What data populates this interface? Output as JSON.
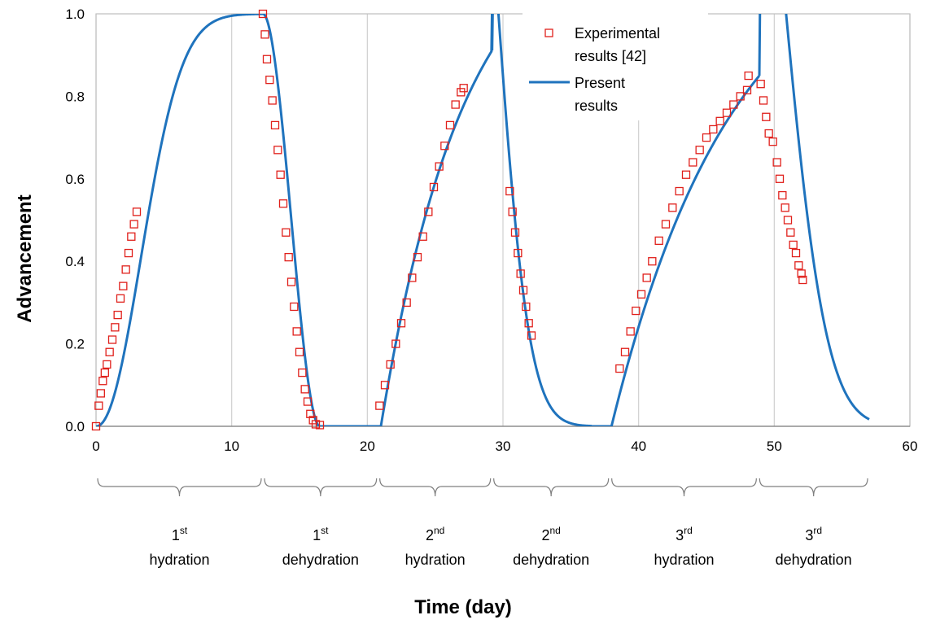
{
  "chart_data": {
    "type": "scatter",
    "xlabel": "Time (day)",
    "ylabel": "Advancement",
    "xlim": [
      0,
      60
    ],
    "ylim": [
      0,
      1.0
    ],
    "xticks": [
      "0",
      "10",
      "20",
      "30",
      "40",
      "50",
      "60"
    ],
    "yticks": [
      "0.0",
      "0.2",
      "0.4",
      "0.6",
      "0.8",
      "1.0"
    ],
    "grid": "vertical",
    "legend_position": "top-center",
    "series": [
      {
        "name": "Experimental results [42]",
        "marker": "open-square",
        "color": "#e0201b",
        "points": [
          [
            0.0,
            0.0
          ],
          [
            0.2,
            0.05
          ],
          [
            0.35,
            0.08
          ],
          [
            0.5,
            0.11
          ],
          [
            0.65,
            0.13
          ],
          [
            0.8,
            0.15
          ],
          [
            1.0,
            0.18
          ],
          [
            1.2,
            0.21
          ],
          [
            1.4,
            0.24
          ],
          [
            1.6,
            0.27
          ],
          [
            1.8,
            0.31
          ],
          [
            2.0,
            0.34
          ],
          [
            2.2,
            0.38
          ],
          [
            2.4,
            0.42
          ],
          [
            2.6,
            0.46
          ],
          [
            2.8,
            0.49
          ],
          [
            3.0,
            0.52
          ],
          [
            12.3,
            1.0
          ],
          [
            12.45,
            0.95
          ],
          [
            12.6,
            0.89
          ],
          [
            12.8,
            0.84
          ],
          [
            13.0,
            0.79
          ],
          [
            13.2,
            0.73
          ],
          [
            13.4,
            0.67
          ],
          [
            13.6,
            0.61
          ],
          [
            13.8,
            0.54
          ],
          [
            14.0,
            0.47
          ],
          [
            14.2,
            0.41
          ],
          [
            14.4,
            0.35
          ],
          [
            14.6,
            0.29
          ],
          [
            14.8,
            0.23
          ],
          [
            15.0,
            0.18
          ],
          [
            15.2,
            0.13
          ],
          [
            15.4,
            0.09
          ],
          [
            15.6,
            0.06
          ],
          [
            15.8,
            0.03
          ],
          [
            16.0,
            0.015
          ],
          [
            16.2,
            0.005
          ],
          [
            16.5,
            0.003
          ],
          [
            20.9,
            0.05
          ],
          [
            21.3,
            0.1
          ],
          [
            21.7,
            0.15
          ],
          [
            22.1,
            0.2
          ],
          [
            22.5,
            0.25
          ],
          [
            22.9,
            0.3
          ],
          [
            23.3,
            0.36
          ],
          [
            23.7,
            0.41
          ],
          [
            24.1,
            0.46
          ],
          [
            24.5,
            0.52
          ],
          [
            24.9,
            0.58
          ],
          [
            25.3,
            0.63
          ],
          [
            25.7,
            0.68
          ],
          [
            26.1,
            0.73
          ],
          [
            26.5,
            0.78
          ],
          [
            26.9,
            0.81
          ],
          [
            27.1,
            0.82
          ],
          [
            30.5,
            0.57
          ],
          [
            30.7,
            0.52
          ],
          [
            30.9,
            0.47
          ],
          [
            31.1,
            0.42
          ],
          [
            31.3,
            0.37
          ],
          [
            31.5,
            0.33
          ],
          [
            31.7,
            0.29
          ],
          [
            31.9,
            0.25
          ],
          [
            32.1,
            0.22
          ],
          [
            38.6,
            0.14
          ],
          [
            39.0,
            0.18
          ],
          [
            39.4,
            0.23
          ],
          [
            39.8,
            0.28
          ],
          [
            40.2,
            0.32
          ],
          [
            40.6,
            0.36
          ],
          [
            41.0,
            0.4
          ],
          [
            41.5,
            0.45
          ],
          [
            42.0,
            0.49
          ],
          [
            42.5,
            0.53
          ],
          [
            43.0,
            0.57
          ],
          [
            43.5,
            0.61
          ],
          [
            44.0,
            0.64
          ],
          [
            44.5,
            0.67
          ],
          [
            45.0,
            0.7
          ],
          [
            45.5,
            0.72
          ],
          [
            46.0,
            0.74
          ],
          [
            46.5,
            0.76
          ],
          [
            47.0,
            0.78
          ],
          [
            47.5,
            0.8
          ],
          [
            48.0,
            0.815
          ],
          [
            48.1,
            0.85
          ],
          [
            49.0,
            0.83
          ],
          [
            49.2,
            0.79
          ],
          [
            49.4,
            0.75
          ],
          [
            49.6,
            0.71
          ],
          [
            49.9,
            0.69
          ],
          [
            50.2,
            0.64
          ],
          [
            50.4,
            0.6
          ],
          [
            50.6,
            0.56
          ],
          [
            50.8,
            0.53
          ],
          [
            51.0,
            0.5
          ],
          [
            51.2,
            0.47
          ],
          [
            51.4,
            0.44
          ],
          [
            51.6,
            0.42
          ],
          [
            51.8,
            0.39
          ],
          [
            52.0,
            0.37
          ],
          [
            52.1,
            0.355
          ]
        ]
      },
      {
        "name": "Present results",
        "marker": "line",
        "color": "#1f73bd"
      }
    ],
    "legend_labels": [
      [
        "Experimental",
        "results [42]"
      ],
      [
        "Present",
        "results"
      ]
    ],
    "phases": [
      {
        "num": "1",
        "sup": "st",
        "name": "hydration",
        "start": 0,
        "end": 12.3
      },
      {
        "num": "1",
        "sup": "st",
        "name": "dehydration",
        "start": 12.3,
        "end": 20.8
      },
      {
        "num": "2",
        "sup": "nd",
        "name": "hydration",
        "start": 20.8,
        "end": 29.2
      },
      {
        "num": "2",
        "sup": "nd",
        "name": "dehydration",
        "start": 29.2,
        "end": 37.9
      },
      {
        "num": "3",
        "sup": "rd",
        "name": "hydration",
        "start": 37.9,
        "end": 48.8
      },
      {
        "num": "3",
        "sup": "rd",
        "name": "dehydration",
        "start": 48.8,
        "end": 57.0
      }
    ]
  }
}
